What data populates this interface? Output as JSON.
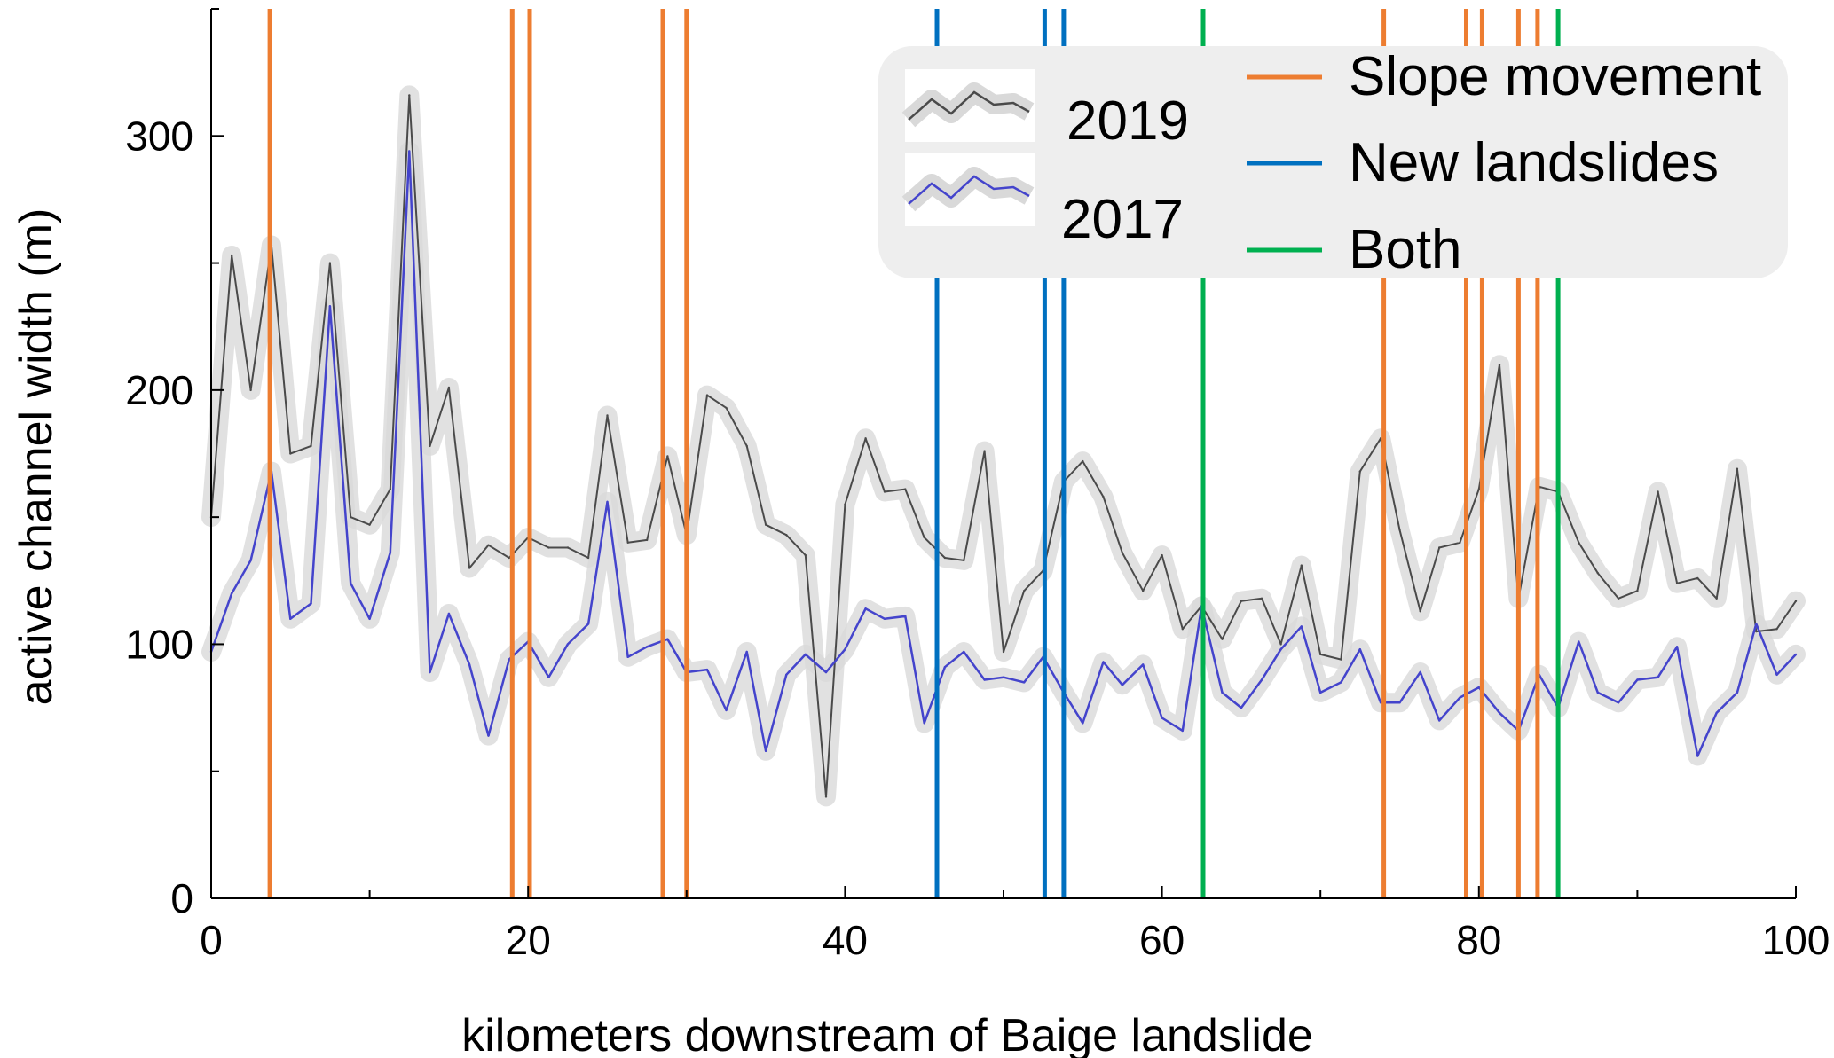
{
  "chart_data": {
    "type": "line",
    "title": "",
    "xlabel": "kilometers downstream of Baige landslide",
    "ylabel": "active channel width (m)",
    "xlim": [
      0,
      100
    ],
    "ylim": [
      0,
      350
    ],
    "xticks": [
      "0",
      "20",
      "40",
      "60",
      "80",
      "100"
    ],
    "yticks": [
      "0",
      "100",
      "200",
      "300"
    ],
    "x": [
      0,
      1.3,
      2.5,
      3.8,
      5,
      6.3,
      7.5,
      8.8,
      10,
      11.3,
      12.5,
      13.8,
      15,
      16.3,
      17.5,
      18.8,
      20,
      21.3,
      22.5,
      23.8,
      25,
      26.3,
      27.5,
      28.8,
      30,
      31.3,
      32.5,
      33.8,
      35,
      36.3,
      37.5,
      38.8,
      40,
      41.3,
      42.5,
      43.8,
      45,
      46.3,
      47.5,
      48.8,
      50,
      51.3,
      52.5,
      53.8,
      55,
      56.3,
      57.5,
      58.8,
      60,
      61.3,
      62.5,
      63.8,
      65,
      66.3,
      67.5,
      68.8,
      70,
      71.3,
      72.5,
      73.8,
      75,
      76.3,
      77.5,
      78.8,
      80,
      81.3,
      82.5,
      83.8,
      85,
      86.3,
      87.5,
      88.8,
      90,
      91.3,
      92.5,
      93.8,
      95,
      96.3,
      97.5,
      98.8,
      100
    ],
    "series": [
      {
        "name": "2019",
        "color": "#4a4a4a",
        "values": [
          150,
          253,
          200,
          257,
          175,
          178,
          250,
          150,
          147,
          161,
          316,
          178,
          201,
          130,
          139,
          134,
          142,
          138,
          138,
          134,
          190,
          140,
          141,
          174,
          143,
          198,
          193,
          178,
          147,
          143,
          135,
          40,
          155,
          181,
          160,
          161,
          142,
          134,
          133,
          176,
          97,
          121,
          129,
          164,
          172,
          158,
          136,
          121,
          135,
          106,
          115,
          102,
          117,
          118,
          100,
          131,
          96,
          94,
          168,
          181,
          145,
          113,
          138,
          140,
          161,
          210,
          118,
          162,
          160,
          140,
          128,
          118,
          121,
          160,
          124,
          126,
          118,
          169,
          105,
          106,
          117
        ]
      },
      {
        "name": "2017",
        "color": "#4444cc",
        "values": [
          97,
          120,
          133,
          168,
          110,
          116,
          233,
          124,
          110,
          136,
          294,
          89,
          112,
          92,
          64,
          94,
          101,
          87,
          100,
          108,
          156,
          95,
          99,
          102,
          89,
          90,
          74,
          97,
          58,
          88,
          96,
          89,
          98,
          114,
          110,
          111,
          69,
          91,
          97,
          86,
          87,
          85,
          95,
          81,
          69,
          93,
          84,
          92,
          71,
          66,
          115,
          81,
          75,
          86,
          98,
          107,
          81,
          85,
          98,
          77,
          77,
          89,
          70,
          79,
          83,
          73,
          66,
          88,
          75,
          101,
          81,
          77,
          86,
          87,
          99,
          56,
          73,
          81,
          108,
          88,
          96
        ]
      }
    ],
    "vertical_lines": [
      {
        "category": "Slope movement",
        "x": [
          3.7,
          19,
          20.1,
          28.5,
          30,
          74,
          79.2,
          80.2,
          82.5,
          83.7
        ]
      },
      {
        "category": "New landslides",
        "x": [
          45.8,
          52.6,
          53.8
        ]
      },
      {
        "category": "Both",
        "x": [
          62.6,
          85
        ]
      }
    ],
    "legend": {
      "position": "top-right",
      "entries": [
        {
          "label": "2019",
          "kind": "series",
          "color": "#4a4a4a"
        },
        {
          "label": "2017",
          "kind": "series",
          "color": "#4444cc"
        },
        {
          "label": "Slope movement",
          "kind": "line",
          "color": "#ED7D31"
        },
        {
          "label": "New landslides",
          "kind": "line",
          "color": "#0070C0"
        },
        {
          "label": "Both",
          "kind": "line",
          "color": "#00B050"
        }
      ]
    },
    "colors": {
      "slope_movement": "#ED7D31",
      "new_landslides": "#0070C0",
      "both": "#00B050",
      "confidence_band": "#d9d9d9",
      "legend_background": "#eeeeee"
    }
  }
}
